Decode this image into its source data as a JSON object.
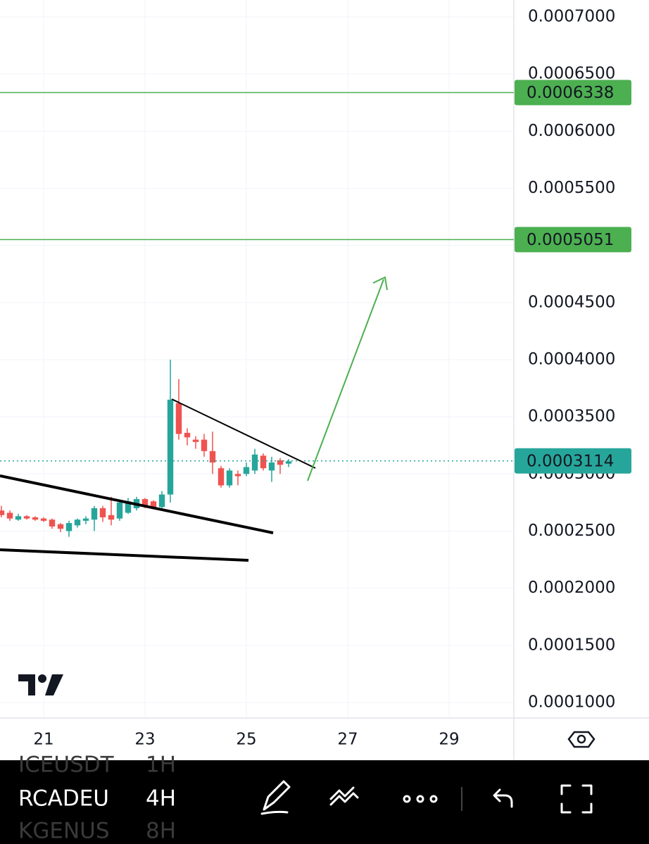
{
  "chart_data": {
    "type": "candlestick",
    "x": [
      20.1667,
      20.3333,
      20.5,
      20.6667,
      20.8333,
      21,
      21.1667,
      21.3333,
      21.5,
      21.6667,
      21.8333,
      22,
      22.1667,
      22.3333,
      22.5,
      22.6667,
      22.8333,
      23,
      23.1667,
      23.3333,
      23.5,
      23.6667,
      23.8333,
      24,
      24.1667,
      24.3333,
      24.5,
      24.6667,
      24.8333,
      25,
      25.1667,
      25.3333,
      25.5,
      25.6667,
      25.8333
    ],
    "open": [
      0.000268,
      0.000266,
      0.00026,
      0.000263,
      0.000262,
      0.000261,
      0.00026,
      0.000256,
      0.00025,
      0.000255,
      0.000259,
      0.00026,
      0.00027,
      0.000264,
      0.000261,
      0.000266,
      0.00027,
      0.000278,
      0.000276,
      0.000271,
      0.000282,
      0.000362,
      0.000336,
      0.00033,
      0.00033,
      0.00032,
      0.000305,
      0.00029,
      0.0003,
      0.0003,
      0.000303,
      0.000316,
      0.000303,
      0.000312,
      0.000309
    ],
    "high": [
      0.000272,
      0.000268,
      0.000265,
      0.000264,
      0.000263,
      0.000262,
      0.000261,
      0.000257,
      0.000259,
      0.000261,
      0.000263,
      0.000272,
      0.000272,
      0.00028,
      0.000277,
      0.000279,
      0.00028,
      0.000279,
      0.000277,
      0.000285,
      0.0004,
      0.000383,
      0.00034,
      0.000333,
      0.000335,
      0.000337,
      0.000307,
      0.000305,
      0.000303,
      0.00031,
      0.000322,
      0.000318,
      0.000315,
      0.000314,
      0.000313
    ],
    "low": [
      0.000262,
      0.000259,
      0.000259,
      0.00026,
      0.000259,
      0.000258,
      0.000252,
      0.000249,
      0.000245,
      0.000253,
      0.000256,
      0.00025,
      0.000258,
      0.000255,
      0.000259,
      0.000265,
      0.000268,
      0.00027,
      0.000269,
      0.00027,
      0.000275,
      0.00033,
      0.000325,
      0.000322,
      0.000315,
      0.0003,
      0.000288,
      0.000288,
      0.00029,
      0.000298,
      0.0003,
      0.000303,
      0.000293,
      0.0003,
      0.000306
    ],
    "close": [
      0.000264,
      0.000261,
      0.000263,
      0.000261,
      0.00026,
      0.000259,
      0.000254,
      0.000252,
      0.000257,
      0.00026,
      0.000261,
      0.00027,
      0.000262,
      0.00026,
      0.000275,
      0.000276,
      0.000278,
      0.000272,
      0.00027,
      0.000282,
      0.000365,
      0.000335,
      0.000332,
      0.000328,
      0.00032,
      0.00031,
      0.00029,
      0.000303,
      0.000298,
      0.000306,
      0.000317,
      0.000305,
      0.00031,
      0.000308,
      0.000311
    ],
    "up_color": "#26a69a",
    "down_color": "#ef5350",
    "xlim": [
      20.1389,
      30.2778
    ],
    "xticks": [
      21,
      23,
      25,
      27,
      29
    ],
    "ylim": [
      8.64e-05,
      0.0007148
    ],
    "yticks": [
      {
        "value": 0.0007,
        "label": "0.0007000"
      },
      {
        "value": 0.00065,
        "label": "0.0006500"
      },
      {
        "value": 0.0006,
        "label": "0.0006000"
      },
      {
        "value": 0.00055,
        "label": "0.0005500"
      },
      {
        "value": 0.0005,
        "label": "0.0005000"
      },
      {
        "value": 0.00045,
        "label": "0.0004500"
      },
      {
        "value": 0.0004,
        "label": "0.0004000"
      },
      {
        "value": 0.00035,
        "label": "0.0003500"
      },
      {
        "value": 0.0003,
        "label": "0.0003000"
      },
      {
        "value": 0.00025,
        "label": "0.0002500"
      },
      {
        "value": 0.0002,
        "label": "0.0002000"
      },
      {
        "value": 0.00015,
        "label": "0.0001500"
      },
      {
        "value": 0.0001,
        "label": "0.0001000"
      }
    ],
    "grid": true,
    "levels": [
      {
        "value": 0.0006338,
        "color": "#4caf50"
      },
      {
        "value": 0.0005051,
        "color": "#4caf50"
      }
    ],
    "last_price": {
      "value": 0.0003114,
      "color": "#26a69a"
    }
  },
  "toolbar": {
    "symbols": [
      "ICEUSDT",
      "RCADEU",
      "KGENUS"
    ],
    "intervals": [
      "1H",
      "4H",
      "8H"
    ]
  }
}
